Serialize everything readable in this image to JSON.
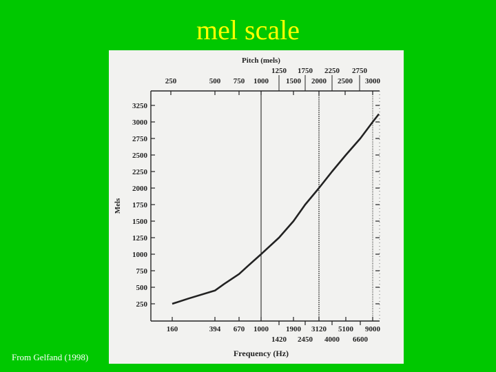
{
  "slide": {
    "title": "mel scale",
    "credit": "From Gelfand (1998)"
  },
  "chart_data": {
    "type": "line",
    "title": "",
    "top_axis_label": "Pitch (mels)",
    "top_ticks_row1": [
      "1250",
      "1750",
      "2250",
      "2750"
    ],
    "top_ticks_row2": [
      "250",
      "500",
      "750",
      "1000",
      "1500",
      "2000",
      "2500",
      "3000"
    ],
    "xlabel": "Frequency (Hz)",
    "bottom_ticks_row1": [
      "160",
      "394",
      "670",
      "1000",
      "1900",
      "3120",
      "5100",
      "9000"
    ],
    "bottom_ticks_row2": [
      "1420",
      "2450",
      "4000",
      "6600"
    ],
    "ylabel": "Mels",
    "y_ticks": [
      "250",
      "500",
      "750",
      "1000",
      "1250",
      "1500",
      "1750",
      "2000",
      "2250",
      "2500",
      "2750",
      "3000",
      "3250"
    ],
    "ylim": [
      0,
      3400
    ],
    "reference_lines_hz": [
      1000,
      3120,
      9000
    ],
    "series": [
      {
        "x": [
          160,
          250,
          394,
          500,
          670,
          800,
          1000,
          1420,
          1900,
          2450,
          3120,
          4000,
          5100,
          6600,
          9000,
          10000
        ],
        "y": [
          250,
          330,
          450,
          550,
          700,
          820,
          1000,
          1250,
          1500,
          1750,
          2000,
          2250,
          2500,
          2750,
          3000,
          3120
        ]
      }
    ],
    "colors": {
      "curve": "#222222",
      "background": "#f2f2f0"
    }
  }
}
